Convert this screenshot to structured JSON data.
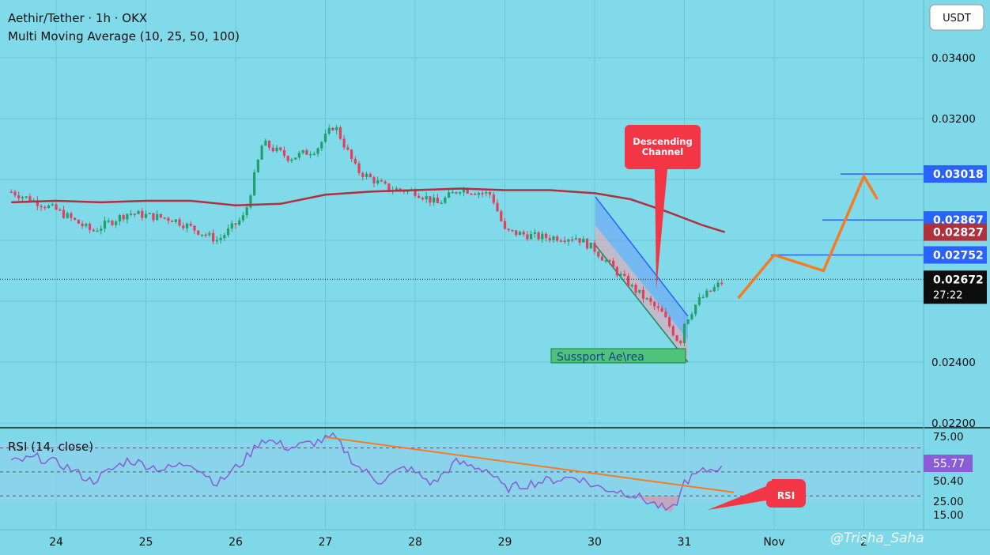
{
  "header": {
    "symbol_line": "Aethir/Tether · 1h · OKX",
    "indicator_line": "Multi Moving Average (10, 25, 50, 100)",
    "currency": "USDT"
  },
  "rsi_panel": {
    "label": "RSI (14, close)",
    "current": "55.77",
    "ticks": [
      "75.00",
      "50.40",
      "25.00",
      "15.00"
    ]
  },
  "annotations": {
    "descending_channel": "Descending\nChannel",
    "support_area": "Sussport Ae\\rea",
    "rsi_callout": "RSI",
    "watermark": "Trisha_Saha"
  },
  "price_labels": {
    "target_high": "0.03018",
    "level_2": "0.02867",
    "moving_average": "0.02827",
    "level_1": "0.02752",
    "last_price": "0.02672",
    "countdown": "27:22"
  },
  "colors": {
    "background": "#7fd8e8",
    "up_candle": "#22a06b",
    "down_candle": "#e2405a",
    "moving_average": "#b0303c",
    "projection": "#f57c20",
    "level_line": "#2962ff",
    "rsi_line": "#8a5cd6",
    "rsi_trend": "#f57c20",
    "callout": "#f23645"
  },
  "chart_data": {
    "type": "candlestick",
    "y_ticks": [
      "0.03400",
      "0.03200",
      "0.02400",
      "0.02200"
    ],
    "x_ticks": [
      "24",
      "25",
      "26",
      "27",
      "28",
      "29",
      "30",
      "31",
      "Nov",
      "2"
    ],
    "levels": [
      0.02752,
      0.02867,
      0.03018
    ],
    "close_path": [
      {
        "day": 23.5,
        "price": 0.0296
      },
      {
        "day": 24.0,
        "price": 0.029
      },
      {
        "day": 24.4,
        "price": 0.0283
      },
      {
        "day": 24.8,
        "price": 0.0289
      },
      {
        "day": 25.3,
        "price": 0.0287
      },
      {
        "day": 25.8,
        "price": 0.028
      },
      {
        "day": 26.1,
        "price": 0.0288
      },
      {
        "day": 26.3,
        "price": 0.0312
      },
      {
        "day": 26.6,
        "price": 0.0307
      },
      {
        "day": 26.9,
        "price": 0.031
      },
      {
        "day": 27.1,
        "price": 0.0318
      },
      {
        "day": 27.35,
        "price": 0.0303
      },
      {
        "day": 27.7,
        "price": 0.0297
      },
      {
        "day": 28.0,
        "price": 0.0296
      },
      {
        "day": 28.25,
        "price": 0.0292
      },
      {
        "day": 28.5,
        "price": 0.0297
      },
      {
        "day": 28.85,
        "price": 0.0295
      },
      {
        "day": 29.0,
        "price": 0.0283
      },
      {
        "day": 29.4,
        "price": 0.0281
      },
      {
        "day": 29.8,
        "price": 0.0281
      },
      {
        "day": 30.0,
        "price": 0.0277
      },
      {
        "day": 30.4,
        "price": 0.0265
      },
      {
        "day": 30.75,
        "price": 0.0256
      },
      {
        "day": 30.95,
        "price": 0.0246
      },
      {
        "day": 31.0,
        "price": 0.0253
      },
      {
        "day": 31.15,
        "price": 0.026
      },
      {
        "day": 31.45,
        "price": 0.0267
      }
    ],
    "moving_average": [
      {
        "day": 23.5,
        "price": 0.02925
      },
      {
        "day": 24.0,
        "price": 0.0293
      },
      {
        "day": 24.5,
        "price": 0.02925
      },
      {
        "day": 25.0,
        "price": 0.0293
      },
      {
        "day": 25.5,
        "price": 0.0293
      },
      {
        "day": 26.0,
        "price": 0.02915
      },
      {
        "day": 26.5,
        "price": 0.0292
      },
      {
        "day": 27.0,
        "price": 0.0295
      },
      {
        "day": 27.5,
        "price": 0.0296
      },
      {
        "day": 28.0,
        "price": 0.02965
      },
      {
        "day": 28.5,
        "price": 0.0297
      },
      {
        "day": 29.0,
        "price": 0.02965
      },
      {
        "day": 29.5,
        "price": 0.02965
      },
      {
        "day": 30.0,
        "price": 0.02955
      },
      {
        "day": 30.4,
        "price": 0.02935
      },
      {
        "day": 30.8,
        "price": 0.02895
      },
      {
        "day": 31.2,
        "price": 0.0285
      },
      {
        "day": 31.45,
        "price": 0.02827
      }
    ],
    "projection": [
      {
        "day": 31.6,
        "price": 0.0261
      },
      {
        "day": 32.0,
        "price": 0.02752
      },
      {
        "day": 32.55,
        "price": 0.027
      },
      {
        "day": 33.0,
        "price": 0.0301
      },
      {
        "day": 33.15,
        "price": 0.02935
      }
    ],
    "rsi": [
      {
        "day": 23.5,
        "rsi": 58
      },
      {
        "day": 23.8,
        "rsi": 62
      },
      {
        "day": 24.1,
        "rsi": 55
      },
      {
        "day": 24.4,
        "rsi": 42
      },
      {
        "day": 24.8,
        "rsi": 60
      },
      {
        "day": 25.2,
        "rsi": 52
      },
      {
        "day": 25.5,
        "rsi": 58
      },
      {
        "day": 25.8,
        "rsi": 40
      },
      {
        "day": 26.1,
        "rsi": 60
      },
      {
        "day": 26.3,
        "rsi": 78
      },
      {
        "day": 26.6,
        "rsi": 70
      },
      {
        "day": 26.9,
        "rsi": 75
      },
      {
        "day": 27.1,
        "rsi": 79
      },
      {
        "day": 27.35,
        "rsi": 55
      },
      {
        "day": 27.6,
        "rsi": 42
      },
      {
        "day": 27.9,
        "rsi": 54
      },
      {
        "day": 28.2,
        "rsi": 40
      },
      {
        "day": 28.45,
        "rsi": 58
      },
      {
        "day": 28.8,
        "rsi": 52
      },
      {
        "day": 29.0,
        "rsi": 36
      },
      {
        "day": 29.4,
        "rsi": 42
      },
      {
        "day": 29.8,
        "rsi": 46
      },
      {
        "day": 30.0,
        "rsi": 38
      },
      {
        "day": 30.4,
        "rsi": 32
      },
      {
        "day": 30.7,
        "rsi": 22
      },
      {
        "day": 30.85,
        "rsi": 16
      },
      {
        "day": 30.95,
        "rsi": 30
      },
      {
        "day": 31.0,
        "rsi": 42
      },
      {
        "day": 31.2,
        "rsi": 50
      },
      {
        "day": 31.45,
        "rsi": 55.77
      }
    ],
    "rsi_trend": [
      {
        "day": 27.0,
        "rsi": 79
      },
      {
        "day": 31.55,
        "rsi": 33
      }
    ]
  }
}
